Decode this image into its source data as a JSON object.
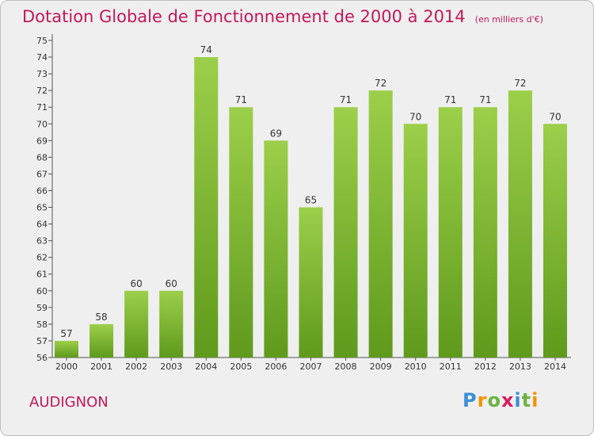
{
  "header": {
    "title": "Dotation Globale de Fonctionnement de 2000 à 2014",
    "unit": "(en milliers d'€)"
  },
  "footer": {
    "place": "AUDIGNON",
    "logo_text": "Proxiti"
  },
  "colors": {
    "bar_top": "#9ccf4a",
    "bar_bottom": "#5f9a1c",
    "title": "#c2185b"
  },
  "chart_data": {
    "type": "bar",
    "title": "Dotation Globale de Fonctionnement de 2000 à 2014",
    "xlabel": "",
    "ylabel": "",
    "categories": [
      "2000",
      "2001",
      "2002",
      "2003",
      "2004",
      "2005",
      "2006",
      "2007",
      "2008",
      "2009",
      "2010",
      "2011",
      "2012",
      "2013",
      "2014"
    ],
    "values": [
      57,
      58,
      60,
      60,
      74,
      71,
      69,
      65,
      71,
      72,
      70,
      71,
      71,
      72,
      70
    ],
    "ylim": [
      56,
      75
    ],
    "yticks": [
      56,
      57,
      58,
      59,
      60,
      61,
      62,
      63,
      64,
      65,
      66,
      67,
      68,
      69,
      70,
      71,
      72,
      73,
      74,
      75
    ],
    "grid": false,
    "data_labels": true
  }
}
